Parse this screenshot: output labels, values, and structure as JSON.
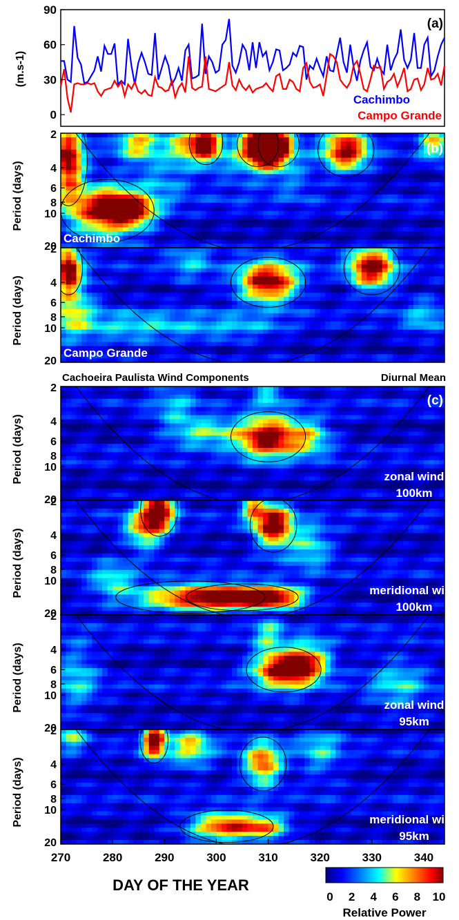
{
  "figure": {
    "subtitle_left": "Cachoeira Paulista Wind Components",
    "subtitle_right": "Diurnal Mean",
    "xlabel": "DAY OF THE YEAR",
    "x_ticks": [
      "270",
      "280",
      "290",
      "300",
      "310",
      "320",
      "330",
      "340"
    ],
    "colorbar_label": "Relative Power",
    "colorbar_ticks": [
      "0",
      "2",
      "4",
      "6",
      "8",
      "10"
    ],
    "colors": [
      "#00007f",
      "#0000ff",
      "#0080ff",
      "#00ffff",
      "#ffff00",
      "#ff8000",
      "#ff0000",
      "#800000"
    ]
  },
  "chart_data": [
    {
      "type": "line",
      "panel_letter": "(a)",
      "ylabel": "(m.s-1)",
      "ylim": [
        -10,
        90
      ],
      "y_ticks": [
        "0",
        "30",
        "60",
        "90"
      ],
      "xlim": [
        270,
        344
      ],
      "x_start": 270,
      "series": [
        {
          "name": "Cachimbo",
          "color": "#0000ff",
          "values": [
            46,
            46,
            30,
            28,
            76,
            49,
            43,
            27,
            28,
            33,
            38,
            50,
            37,
            59,
            52,
            52,
            61,
            26,
            29,
            26,
            65,
            42,
            26,
            44,
            53,
            45,
            35,
            34,
            70,
            30,
            40,
            50,
            42,
            26,
            31,
            40,
            29,
            55,
            60,
            31,
            32,
            34,
            78,
            35,
            50,
            45,
            36,
            38,
            60,
            64,
            82,
            42,
            36,
            45,
            60,
            55,
            38,
            62,
            40,
            62,
            50,
            54,
            38,
            45,
            56,
            55,
            38,
            40,
            43,
            53,
            50,
            59,
            58,
            30,
            42,
            39,
            48,
            40,
            33,
            50,
            38,
            37,
            52,
            66,
            45,
            36,
            60,
            41,
            29,
            46,
            55,
            62,
            41,
            38,
            48,
            39,
            35,
            60,
            38,
            47,
            53,
            73,
            47,
            40,
            47,
            70,
            40,
            40,
            60,
            66,
            33,
            38,
            50,
            60,
            66
          ]
        },
        {
          "name": "Campo Grande",
          "color": "#ff0000",
          "values": [
            24,
            39,
            14,
            2,
            26,
            27,
            26,
            26,
            27,
            26,
            27,
            20,
            16,
            21,
            22,
            23,
            29,
            24,
            28,
            16,
            26,
            22,
            28,
            20,
            18,
            21,
            17,
            16,
            32,
            24,
            23,
            20,
            21,
            29,
            15,
            23,
            27,
            19,
            50,
            23,
            21,
            23,
            24,
            50,
            22,
            21,
            20,
            22,
            24,
            26,
            45,
            25,
            21,
            30,
            24,
            21,
            25,
            19,
            22,
            23,
            24,
            27,
            23,
            20,
            33,
            35,
            22,
            22,
            30,
            28,
            22,
            20,
            40,
            44,
            28,
            23,
            24,
            26,
            16,
            34,
            52,
            50,
            45,
            30,
            26,
            23,
            28,
            42,
            46,
            35,
            22,
            20,
            30,
            42,
            40,
            41,
            22,
            28,
            30,
            35,
            24,
            31,
            40,
            20,
            22,
            30,
            31,
            21,
            26,
            40,
            30,
            31,
            35,
            25,
            42
          ]
        }
      ]
    },
    {
      "type": "heatmap",
      "panel_letter": "(b)",
      "label_lines": [
        "Cachimbo"
      ],
      "ylabel": "Period (days)",
      "y_ticks": [
        "2",
        "4",
        "6",
        "8",
        "10",
        "20"
      ],
      "xlim": [
        270,
        344
      ],
      "blobs": [
        [
          271.5,
          3.5,
          2,
          0.5,
          0.95
        ],
        [
          279,
          9.5,
          5,
          0.35,
          0.95
        ],
        [
          284,
          9.5,
          3,
          0.2,
          0.55
        ],
        [
          285,
          2.4,
          3,
          0.25,
          0.55
        ],
        [
          294,
          2.5,
          2.5,
          0.25,
          0.5
        ],
        [
          298,
          2.4,
          1.8,
          0.25,
          0.9
        ],
        [
          308,
          2.5,
          2.2,
          0.25,
          0.95
        ],
        [
          312,
          2.5,
          2.2,
          0.25,
          0.95
        ],
        [
          310,
          3.4,
          2,
          0.18,
          0.4
        ],
        [
          325,
          2.8,
          3,
          0.3,
          0.9
        ],
        [
          342,
          2.4,
          2,
          0.25,
          0.5
        ],
        [
          290,
          5,
          4,
          0.3,
          0.25
        ],
        [
          315,
          5,
          3,
          0.3,
          0.2
        ],
        [
          305,
          3.5,
          5,
          0.4,
          0.25
        ]
      ]
    },
    {
      "type": "heatmap",
      "panel_letter": "",
      "label_lines": [
        "Campo Grande"
      ],
      "ylabel": "Period (days)",
      "y_ticks": [
        "2",
        "4",
        "6",
        "8",
        "10",
        "20"
      ],
      "xlim": [
        270,
        344
      ],
      "blobs": [
        [
          271.5,
          3,
          1.5,
          0.3,
          0.85
        ],
        [
          272,
          6,
          3,
          0.5,
          0.45
        ],
        [
          310,
          4,
          4,
          0.28,
          1.0
        ],
        [
          330,
          3,
          3,
          0.3,
          0.95
        ],
        [
          285,
          10,
          10,
          0.25,
          0.3
        ],
        [
          305,
          10,
          6,
          0.2,
          0.2
        ],
        [
          295,
          2.6,
          3,
          0.3,
          0.25
        ],
        [
          340,
          8,
          3,
          0.3,
          0.25
        ]
      ]
    },
    {
      "type": "heatmap",
      "panel_letter": "(c)",
      "label_lines": [
        "zonal wind",
        "100km"
      ],
      "ylabel": "Period (days)",
      "y_ticks": [
        "2",
        "4",
        "6",
        "8",
        "10",
        "20"
      ],
      "xlim": [
        270,
        344
      ],
      "blobs": [
        [
          310,
          5.5,
          4,
          0.28,
          1.0
        ],
        [
          298,
          5,
          5,
          0.2,
          0.45
        ],
        [
          318,
          5.5,
          3,
          0.25,
          0.45
        ],
        [
          292,
          3,
          3,
          0.3,
          0.25
        ],
        [
          310,
          2.3,
          2,
          0.2,
          0.3
        ]
      ]
    },
    {
      "type": "heatmap",
      "panel_letter": "",
      "label_lines": [
        "meridional wind",
        "100km"
      ],
      "ylabel": "Period (days)",
      "y_ticks": [
        "2",
        "4",
        "6",
        "8",
        "10",
        "20"
      ],
      "xlim": [
        270,
        344
      ],
      "blobs": [
        [
          289,
          2.4,
          2,
          0.3,
          0.95
        ],
        [
          286,
          3.5,
          2.5,
          0.3,
          0.6
        ],
        [
          311,
          3.3,
          2.5,
          0.3,
          1.0
        ],
        [
          307,
          2.3,
          1.5,
          0.2,
          0.5
        ],
        [
          295,
          14,
          8,
          0.18,
          0.75
        ],
        [
          305,
          14,
          6,
          0.15,
          0.8
        ],
        [
          312,
          14,
          4,
          0.15,
          0.6
        ],
        [
          318,
          5,
          3,
          0.3,
          0.4
        ],
        [
          280,
          10,
          3,
          0.25,
          0.35
        ]
      ]
    },
    {
      "type": "heatmap",
      "panel_letter": "",
      "label_lines": [
        "zonal wind",
        "95km"
      ],
      "ylabel": "Period (days)",
      "y_ticks": [
        "2",
        "4",
        "6",
        "8",
        "10",
        "20"
      ],
      "xlim": [
        270,
        344
      ],
      "blobs": [
        [
          313,
          6,
          4,
          0.25,
          1.0
        ],
        [
          318,
          5,
          3,
          0.28,
          0.55
        ],
        [
          310,
          3,
          2,
          0.3,
          0.35
        ],
        [
          273,
          7,
          3,
          0.5,
          0.3
        ],
        [
          335,
          8,
          4,
          0.4,
          0.3
        ]
      ]
    },
    {
      "type": "heatmap",
      "panel_letter": "",
      "label_lines": [
        "meridional wind",
        "95km"
      ],
      "ylabel": "Period (days)",
      "y_ticks": [
        "2",
        "4",
        "6",
        "8",
        "10",
        "20"
      ],
      "xlim": [
        270,
        344
      ],
      "blobs": [
        [
          288,
          2.5,
          1.5,
          0.25,
          1.0
        ],
        [
          295,
          2.8,
          3,
          0.3,
          0.5
        ],
        [
          309,
          4,
          2.5,
          0.3,
          0.75
        ],
        [
          302,
          14,
          5,
          0.18,
          0.85
        ],
        [
          310,
          14,
          3,
          0.15,
          0.5
        ],
        [
          272,
          2.2,
          2,
          0.2,
          0.45
        ],
        [
          320,
          3,
          3,
          0.4,
          0.3
        ]
      ]
    }
  ]
}
